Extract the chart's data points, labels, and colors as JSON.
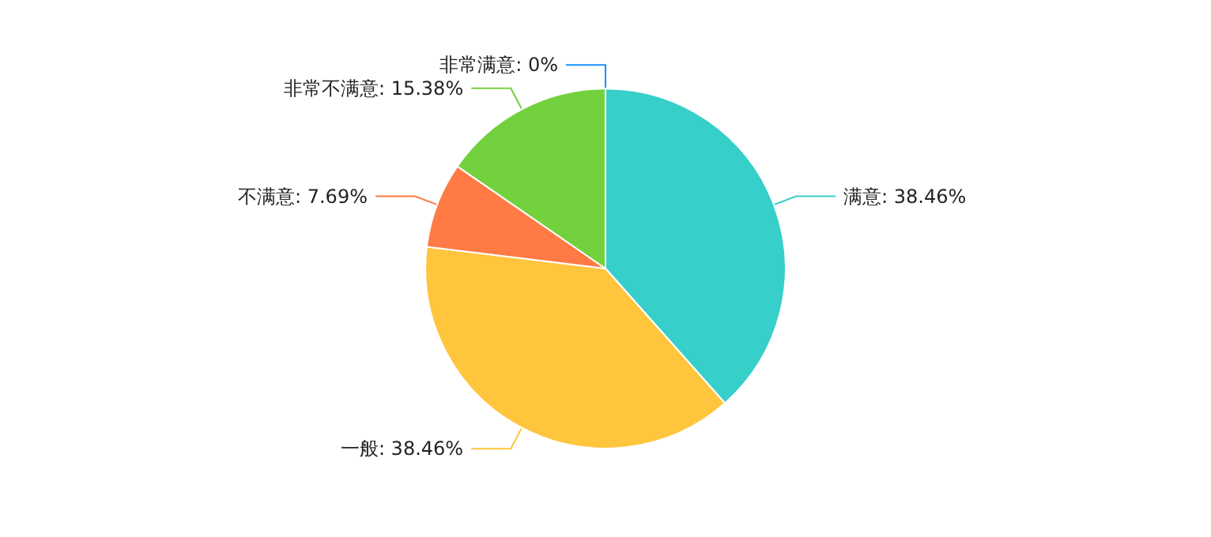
{
  "chart_data": {
    "type": "pie",
    "categories": [
      "非常满意",
      "满意",
      "一般",
      "不满意",
      "非常不满意"
    ],
    "values": [
      0,
      38.46,
      38.46,
      7.69,
      15.38
    ],
    "colors": [
      "#1890ff",
      "#36cfc9",
      "#ffc53d",
      "#ff7a45",
      "#73d13d"
    ],
    "value_labels": [
      "0%",
      "38.46%",
      "38.46%",
      "7.69%",
      "15.38%"
    ]
  }
}
